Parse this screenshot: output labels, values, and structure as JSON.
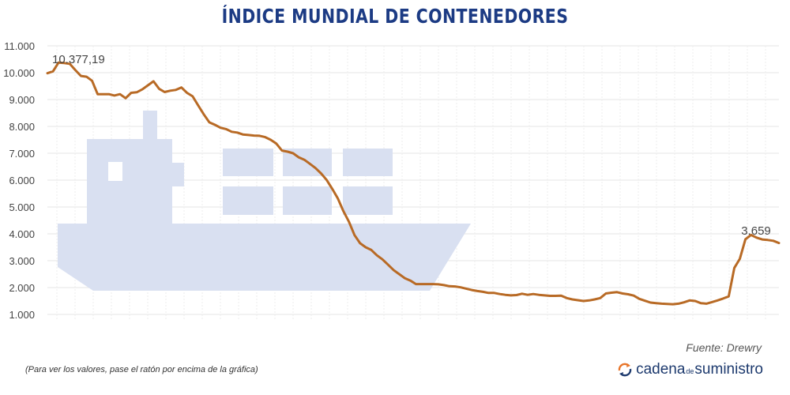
{
  "title": "ÍNDICE MUNDIAL DE CONTENEDORES",
  "source": "Fuente: Drewry",
  "note": "(Para ver los valores, pase el ratón por encima de la gráfica)",
  "brand": {
    "part1": "cadena",
    "part2": "de",
    "part3": "suministro"
  },
  "colors": {
    "line": "#b86a25",
    "title": "#1c3b84",
    "ship": "#d9e0f1",
    "max_label": "#c0223b",
    "last_label": "#1c3b84"
  },
  "chart_data": {
    "type": "line",
    "title": "ÍNDICE MUNDIAL DE CONTENEDORES",
    "xlabel": "",
    "ylabel": "",
    "ylim": [
      1000,
      11000
    ],
    "yticks": [
      1000,
      2000,
      3000,
      4000,
      5000,
      6000,
      7000,
      8000,
      9000,
      10000,
      11000
    ],
    "ytick_labels": [
      "1.000",
      "2.000",
      "3.000",
      "4.000",
      "5.000",
      "6.000",
      "7.000",
      "8.000",
      "9.000",
      "10.000",
      "11.000"
    ],
    "grid": true,
    "series": [
      {
        "values": [
          9980,
          10050,
          10377,
          10360,
          10330,
          10100,
          9880,
          9850,
          9700,
          9200,
          9200,
          9200,
          9150,
          9200,
          9050,
          9250,
          9270,
          9380,
          9530,
          9680,
          9400,
          9280,
          9330,
          9360,
          9450,
          9250,
          9120,
          8780,
          8450,
          8150,
          8060,
          7950,
          7900,
          7800,
          7770,
          7700,
          7680,
          7660,
          7650,
          7600,
          7500,
          7360,
          7100,
          7060,
          7000,
          6850,
          6760,
          6610,
          6450,
          6250,
          6010,
          5680,
          5320,
          4850,
          4450,
          3950,
          3650,
          3500,
          3400,
          3200,
          3050,
          2850,
          2650,
          2500,
          2350,
          2260,
          2130,
          2130,
          2130,
          2130,
          2120,
          2090,
          2050,
          2040,
          2010,
          1960,
          1910,
          1870,
          1840,
          1800,
          1800,
          1760,
          1730,
          1710,
          1720,
          1770,
          1730,
          1760,
          1730,
          1710,
          1690,
          1690,
          1700,
          1610,
          1560,
          1530,
          1500,
          1520,
          1560,
          1610,
          1780,
          1810,
          1830,
          1780,
          1750,
          1700,
          1580,
          1510,
          1440,
          1420,
          1400,
          1390,
          1380,
          1400,
          1450,
          1520,
          1500,
          1420,
          1400,
          1460,
          1520,
          1590,
          1670,
          2730,
          3070,
          3800,
          3960,
          3860,
          3790,
          3770,
          3740,
          3659
        ]
      }
    ],
    "max_label": "10.377,19",
    "last_label": "3.659"
  }
}
